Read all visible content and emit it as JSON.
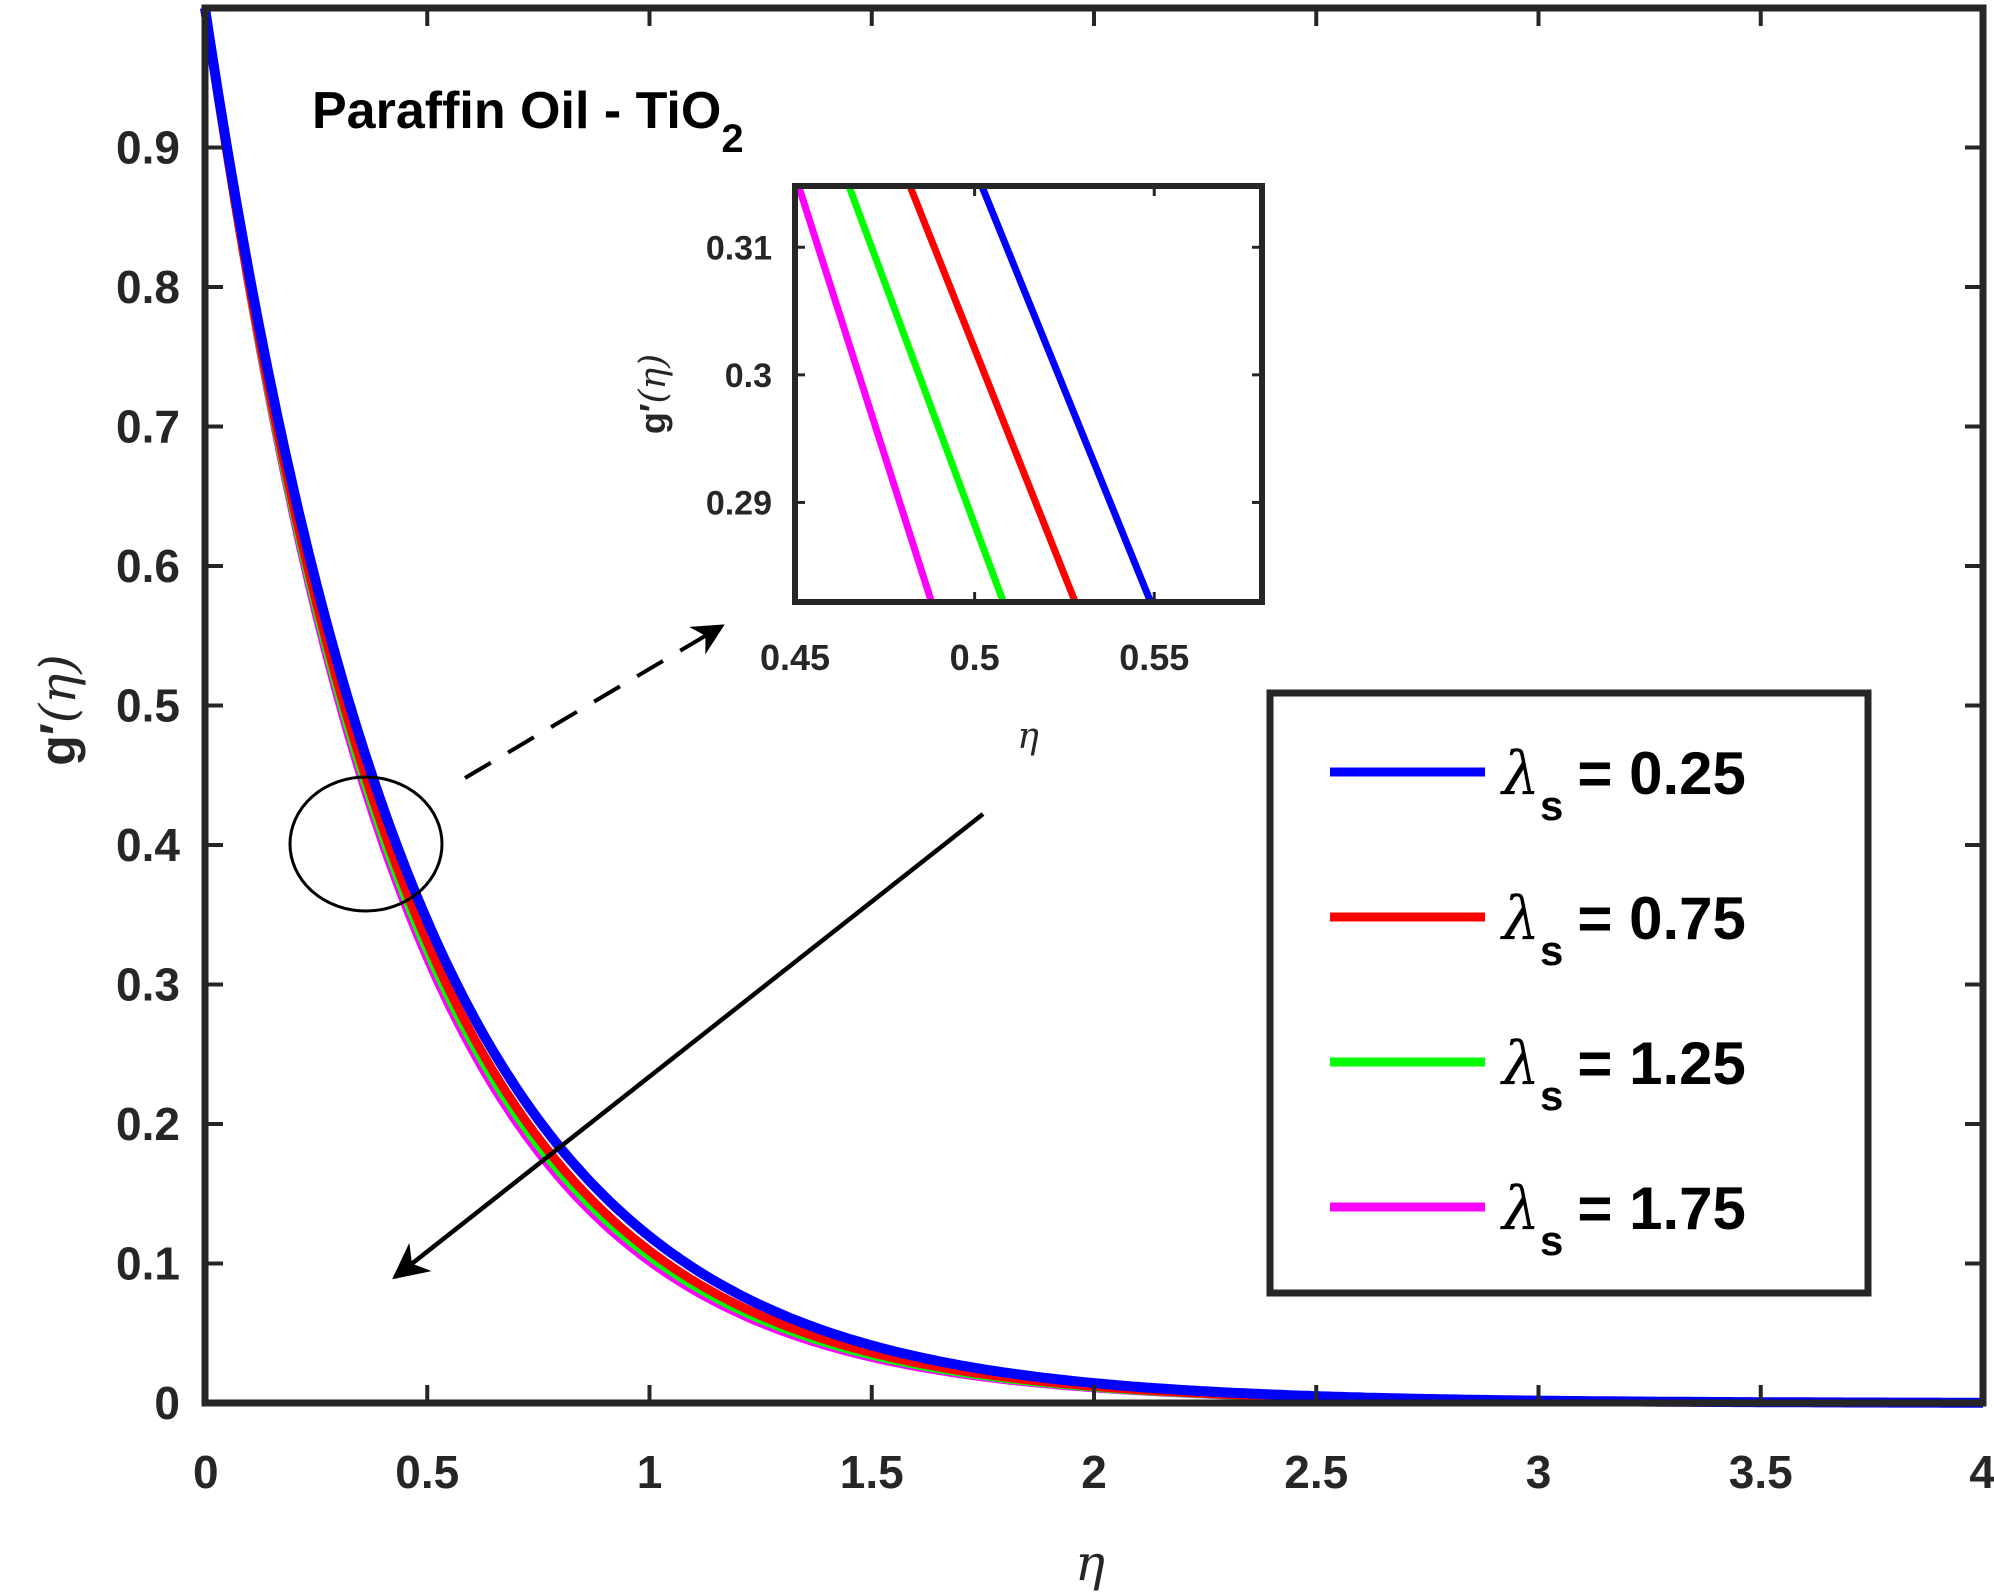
{
  "chart_data": {
    "type": "line",
    "title": "",
    "annotation": {
      "main": "Paraffin Oil - TiO",
      "subscript": "2"
    },
    "xlabel": "η",
    "ylabel": {
      "prefix": "g",
      "prime": "′",
      "arg": "(η)"
    },
    "xlim": [
      0,
      4
    ],
    "ylim": [
      0,
      1
    ],
    "xticks": [
      "0",
      "0.5",
      "1",
      "1.5",
      "2",
      "2.5",
      "3",
      "3.5",
      "4"
    ],
    "yticks": [
      "0",
      "0.1",
      "0.2",
      "0.3",
      "0.4",
      "0.5",
      "0.6",
      "0.7",
      "0.8",
      "0.9"
    ],
    "grid": false,
    "legend_position": "right",
    "series": [
      {
        "name": "λs = 0.25",
        "label_symbol": "λ",
        "label_sub": "s",
        "label_value": "= 0.25",
        "color": "#0000ff",
        "decay_rate": 2.125
      },
      {
        "name": "λs = 0.75",
        "label_symbol": "λ",
        "label_sub": "s",
        "label_value": "= 0.75",
        "color": "#ff0000",
        "decay_rate": 2.215
      },
      {
        "name": "λs = 1.25",
        "label_symbol": "λ",
        "label_sub": "s",
        "label_value": "= 1.25",
        "color": "#00ff00",
        "decay_rate": 2.255
      },
      {
        "name": "λs = 1.75",
        "label_symbol": "λ",
        "label_sub": "s",
        "label_value": "= 1.75",
        "color": "#ff00ff",
        "decay_rate": 2.295
      }
    ],
    "inset": {
      "xlim": [
        0.45,
        0.58
      ],
      "ylim": [
        0.2822,
        0.3148
      ],
      "xticks": [
        "0.45",
        "0.5",
        "0.55"
      ],
      "yticks": [
        "0.29",
        "0.3",
        "0.31"
      ],
      "xlabel": "η",
      "ylabel": {
        "prefix": "g",
        "prime": "′",
        "arg": "(η)"
      },
      "line_segments": [
        {
          "series": "λs = 0.25",
          "x": [
            0.502,
            0.549
          ],
          "y": [
            0.3148,
            0.2822
          ]
        },
        {
          "series": "λs = 0.75",
          "x": [
            0.482,
            0.528
          ],
          "y": [
            0.3148,
            0.2822
          ]
        },
        {
          "series": "λs = 1.25",
          "x": [
            0.465,
            0.508
          ],
          "y": [
            0.3148,
            0.2822
          ]
        },
        {
          "series": "λs = 1.75",
          "x": [
            0.451,
            0.488
          ],
          "y": [
            0.3148,
            0.2822
          ]
        }
      ]
    },
    "trend_arrow_direction": "increasing λs"
  }
}
